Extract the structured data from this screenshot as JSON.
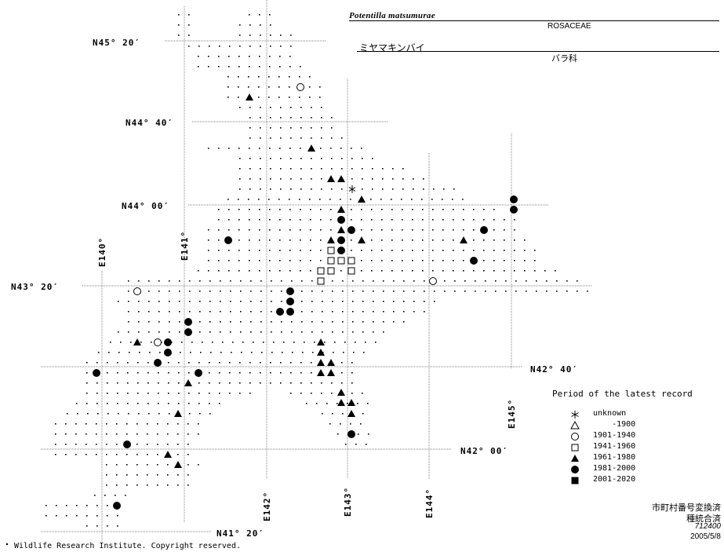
{
  "header": {
    "species_latin": "Potentilla matsumurae",
    "family_latin": "ROSACEAE",
    "species_japanese": "ミヤマキンバイ",
    "family_japanese": "バラ科"
  },
  "latitude_labels": [
    "N45° 20′",
    "N44° 40′",
    "N44° 00′",
    "N43° 20′",
    "N42° 40′",
    "N42° 00′",
    "N41° 20′"
  ],
  "longitude_labels": [
    "E140°",
    "E141°",
    "E142°",
    "E143°",
    "E144°",
    "E145°"
  ],
  "legend": {
    "title": "Period of the latest record",
    "items": [
      {
        "symbol": "asterisk",
        "label": "unknown"
      },
      {
        "symbol": "open-triangle",
        "label": "    -1900"
      },
      {
        "symbol": "open-circle",
        "label": "1901-1940"
      },
      {
        "symbol": "open-square",
        "label": "1941-1960"
      },
      {
        "symbol": "filled-triangle",
        "label": "1961-1980"
      },
      {
        "symbol": "filled-circle",
        "label": "1981-2000"
      },
      {
        "symbol": "filled-square",
        "label": "2001-2020"
      }
    ]
  },
  "notes": {
    "line1": "市町村番号変換済",
    "line2": "種統合済",
    "line3": "712400",
    "line4": "2005/5/8"
  },
  "copyright": "Wildlife Research Institute. Copyright reserved.",
  "colors": {
    "ink": "#000000",
    "background": "#ffffff",
    "grid_line": "#555555"
  }
}
